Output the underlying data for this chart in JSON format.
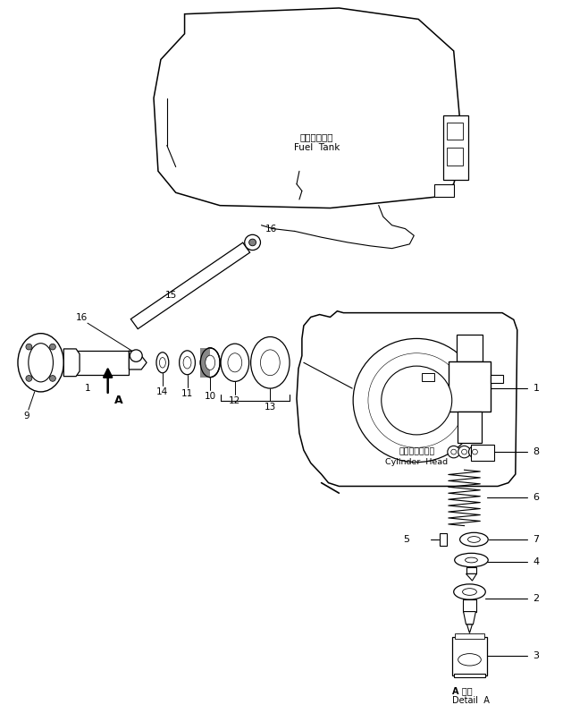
{
  "bg_color": "#ffffff",
  "line_color": "#000000",
  "fig_width": 6.58,
  "fig_height": 7.88,
  "fuel_tank_label_jp": "フェルタンク",
  "fuel_tank_label_en": "Fuel  Tank",
  "cylinder_head_label_jp": "シリンダヘッド",
  "cylinder_head_label_en": "Cylinder  Head",
  "detail_label_jp": "A 詳細",
  "detail_label_en": "Detail  A"
}
